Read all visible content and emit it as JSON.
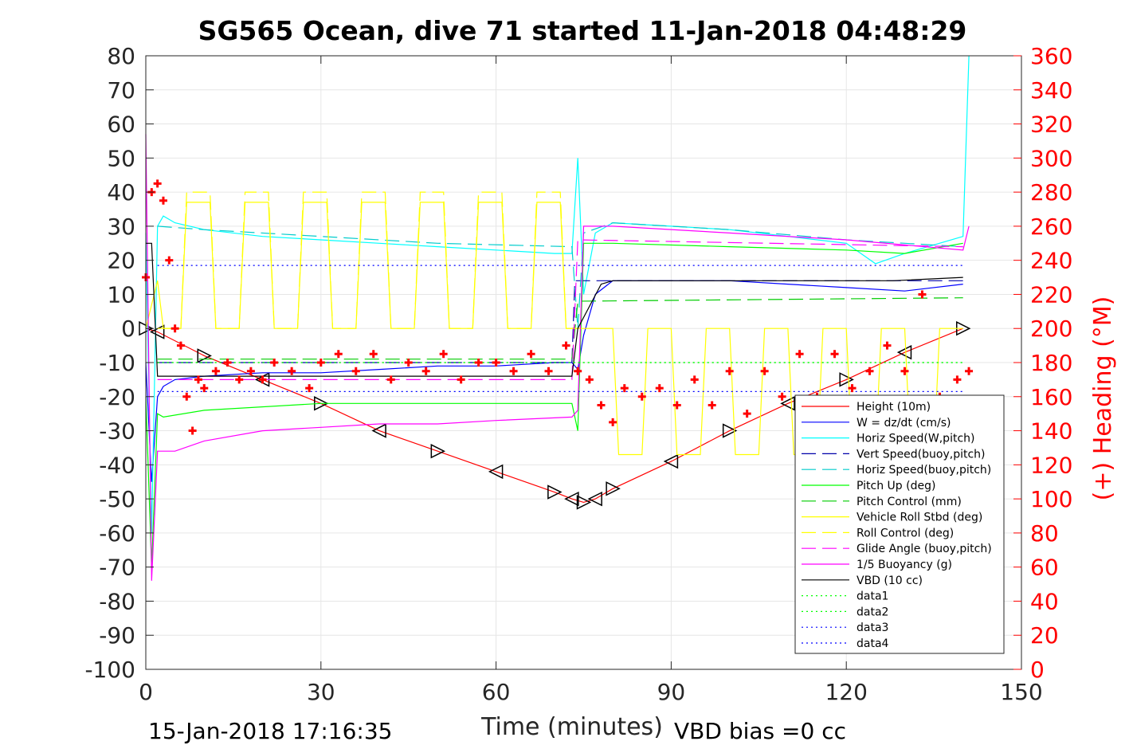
{
  "chart_data": {
    "type": "line",
    "title": "SG565 Ocean, dive 71 started 11-Jan-2018 04:48:29",
    "xlabel": "Time (minutes)",
    "ylabel": "",
    "y2label": "(+) Heading (°M)",
    "xlim": [
      0,
      150
    ],
    "ylim": [
      -100,
      80
    ],
    "y2lim": [
      0,
      360
    ],
    "xticks": [
      "0",
      "30",
      "60",
      "90",
      "120",
      "150"
    ],
    "yticks": [
      "80",
      "70",
      "60",
      "50",
      "40",
      "30",
      "20",
      "10",
      "0",
      "-10",
      "-20",
      "-30",
      "-40",
      "-50",
      "-60",
      "-70",
      "-80",
      "-90",
      "-100"
    ],
    "y2ticks": [
      "360",
      "340",
      "320",
      "300",
      "280",
      "260",
      "240",
      "220",
      "200",
      "180",
      "160",
      "140",
      "120",
      "100",
      "80",
      "60",
      "40",
      "20",
      "0"
    ],
    "grid": true,
    "legend_position": "bottom-right",
    "footer_left": "15-Jan-2018 17:16:35",
    "footer_right": "VBD bias =0 cc",
    "colors": {
      "height": "#ff0000",
      "w": "#0000ff",
      "horiz_w": "#00ffff",
      "vert_buoy": "#0000aa",
      "horiz_buoy": "#00cccc",
      "pitch_up": "#00ff00",
      "pitch_control": "#00cc00",
      "roll": "#ffff00",
      "roll_control": "#ffff00",
      "glide": "#ff00ff",
      "buoyancy": "#ff00ff",
      "vbd": "#000000",
      "heading": "#ff0000"
    },
    "series": [
      {
        "key": "height",
        "name": "Height (10m)",
        "axis": "left",
        "style": "solid",
        "markers": "triangles",
        "x": [
          0,
          2,
          10,
          20,
          30,
          40,
          50,
          60,
          70,
          73,
          75,
          77,
          80,
          90,
          100,
          110,
          120,
          130,
          140
        ],
        "y": [
          0,
          -1,
          -8,
          -15,
          -22,
          -30,
          -36,
          -42,
          -48,
          -50,
          -51,
          -50,
          -47,
          -39,
          -30,
          -22,
          -15,
          -7,
          0
        ]
      },
      {
        "key": "w",
        "name": "W = dz/dt (cm/s)",
        "axis": "left",
        "style": "solid",
        "x": [
          0,
          1,
          2,
          3,
          5,
          10,
          20,
          30,
          40,
          50,
          60,
          70,
          73,
          74,
          75,
          77,
          80,
          90,
          100,
          110,
          120,
          130,
          140
        ],
        "y": [
          -10,
          -45,
          -20,
          -17,
          -15,
          -14,
          -13,
          -13,
          -12,
          -11,
          -11,
          -10,
          -10,
          -12,
          -2,
          10,
          14,
          14,
          14,
          13,
          12,
          11,
          13
        ]
      },
      {
        "key": "horiz_w",
        "name": "Horiz Speed(W,pitch)",
        "axis": "left",
        "style": "solid",
        "x": [
          0,
          1,
          2,
          3,
          5,
          10,
          20,
          30,
          40,
          50,
          60,
          70,
          73,
          74,
          75,
          77,
          80,
          90,
          100,
          110,
          120,
          125,
          130,
          140,
          141
        ],
        "y": [
          28,
          -60,
          30,
          33,
          31,
          29,
          27,
          26,
          25,
          24,
          23,
          22,
          22,
          50,
          10,
          28,
          31,
          30,
          29,
          27,
          25,
          19,
          22,
          27,
          80
        ]
      },
      {
        "key": "vert_buoy",
        "name": "Vert Speed(buoy,pitch)",
        "axis": "left",
        "style": "dashed",
        "x": [
          2,
          73,
          73.5,
          140
        ],
        "y": [
          -10,
          -10,
          14,
          14
        ]
      },
      {
        "key": "horiz_buoy",
        "name": "Horiz Speed(buoy,pitch)",
        "axis": "left",
        "style": "dashed",
        "x": [
          2,
          10,
          30,
          50,
          73,
          74,
          75,
          80,
          100,
          120,
          140
        ],
        "y": [
          30,
          29,
          27,
          25,
          24,
          0,
          28,
          31,
          29,
          26,
          24
        ]
      },
      {
        "key": "pitch_up",
        "name": "Pitch Up (deg)",
        "axis": "left",
        "style": "solid",
        "x": [
          0,
          1,
          2,
          3,
          10,
          30,
          50,
          73,
          74,
          75,
          80,
          100,
          120,
          130,
          140
        ],
        "y": [
          -20,
          -70,
          -25,
          -26,
          -24,
          -22,
          -22,
          -22,
          -30,
          25,
          25,
          24,
          23,
          22,
          25
        ]
      },
      {
        "key": "pitch_control",
        "name": "Pitch Control (mm)",
        "axis": "left",
        "style": "dashed",
        "x": [
          2,
          73,
          74,
          140
        ],
        "y": [
          -9,
          -9,
          8,
          9
        ]
      },
      {
        "key": "roll",
        "name": "Vehicle Roll Stbd (deg)",
        "axis": "left",
        "style": "solid",
        "x": [
          0,
          2,
          3,
          6,
          7,
          11,
          12,
          16,
          17,
          21,
          22,
          26,
          27,
          31,
          32,
          36,
          37,
          41,
          42,
          46,
          47,
          51,
          52,
          56,
          57,
          61,
          62,
          66,
          67,
          71,
          72,
          74,
          75,
          80,
          81,
          85,
          86,
          90,
          91,
          95,
          96,
          100,
          101,
          105,
          106,
          110,
          111,
          115,
          116,
          120,
          121,
          125,
          126,
          130,
          131,
          135,
          136,
          140
        ],
        "y": [
          0,
          14,
          0,
          0,
          37,
          37,
          0,
          0,
          37,
          37,
          0,
          0,
          37,
          37,
          0,
          0,
          37,
          37,
          0,
          0,
          37,
          37,
          0,
          0,
          37,
          37,
          0,
          0,
          37,
          37,
          0,
          0,
          0,
          0,
          -37,
          -37,
          0,
          0,
          -37,
          -37,
          0,
          0,
          -37,
          -37,
          0,
          0,
          -37,
          -37,
          0,
          0,
          -37,
          -37,
          0,
          0,
          -37,
          -37,
          0,
          0
        ]
      },
      {
        "key": "roll_control",
        "name": "Roll Control (deg)",
        "axis": "left",
        "style": "dashed",
        "x": [
          2,
          6,
          7,
          11,
          12,
          16,
          17,
          21,
          22,
          26,
          27,
          31,
          32,
          36,
          37,
          41,
          42,
          46,
          47,
          51,
          52,
          56,
          57,
          61,
          62,
          66,
          67,
          71,
          72,
          74
        ],
        "y": [
          0,
          0,
          40,
          40,
          0,
          0,
          40,
          40,
          0,
          0,
          40,
          40,
          0,
          0,
          40,
          40,
          0,
          0,
          40,
          40,
          0,
          0,
          40,
          40,
          0,
          0,
          40,
          40,
          0,
          0
        ]
      },
      {
        "key": "glide",
        "name": "Glide Angle (buoy,pitch)",
        "axis": "left",
        "style": "dashed",
        "x": [
          2,
          73,
          74,
          140
        ],
        "y": [
          -15,
          -15,
          26,
          24
        ]
      },
      {
        "key": "buoyancy",
        "name": "1/5 Buoyancy (g)",
        "axis": "left",
        "style": "solid",
        "x": [
          0,
          1,
          2,
          5,
          10,
          20,
          30,
          40,
          50,
          60,
          73,
          74,
          75,
          80,
          100,
          120,
          140,
          141
        ],
        "y": [
          57,
          -74,
          -36,
          -36,
          -33,
          -30,
          -29,
          -28,
          -28,
          -27,
          -26,
          -24,
          30,
          30,
          28,
          26,
          23,
          30
        ]
      },
      {
        "key": "vbd",
        "name": "VBD (10 cc)",
        "axis": "left",
        "style": "solid",
        "x": [
          0,
          1,
          2,
          73,
          74,
          78,
          80,
          128,
          140
        ],
        "y": [
          25,
          25,
          -14,
          -14,
          0,
          13,
          14,
          14,
          15
        ]
      },
      {
        "key": "data1",
        "name": "data1",
        "axis": "left",
        "style": "dotted",
        "x": [
          2,
          140
        ],
        "y": [
          -10,
          -10
        ]
      },
      {
        "key": "data2",
        "name": "data2",
        "axis": "left",
        "style": "dotted",
        "x": [
          2,
          140
        ],
        "y": [
          -10,
          -10
        ]
      },
      {
        "key": "data3",
        "name": "data3",
        "axis": "left",
        "style": "dotted",
        "x": [
          2,
          140
        ],
        "y": [
          18.5,
          18.5
        ]
      },
      {
        "key": "data4",
        "name": "data4",
        "axis": "left",
        "style": "dotted",
        "x": [
          2,
          140
        ],
        "y": [
          -18.5,
          -18.5
        ]
      },
      {
        "key": "heading",
        "name": "",
        "axis": "right",
        "style": "markers",
        "x": [
          0,
          1,
          2,
          3,
          4,
          5,
          6,
          7,
          8,
          9,
          10,
          12,
          14,
          16,
          18,
          20,
          22,
          25,
          28,
          30,
          33,
          36,
          39,
          42,
          45,
          48,
          51,
          54,
          57,
          60,
          63,
          66,
          69,
          72,
          74,
          76,
          78,
          80,
          82,
          85,
          88,
          91,
          94,
          97,
          100,
          103,
          106,
          109,
          112,
          115,
          118,
          121,
          124,
          127,
          130,
          133,
          136,
          139,
          141
        ],
        "y": [
          230,
          280,
          285,
          275,
          240,
          200,
          190,
          160,
          140,
          170,
          165,
          175,
          180,
          170,
          175,
          170,
          180,
          175,
          165,
          180,
          185,
          175,
          185,
          170,
          180,
          175,
          185,
          170,
          180,
          180,
          175,
          185,
          175,
          190,
          175,
          170,
          155,
          145,
          165,
          160,
          165,
          155,
          170,
          155,
          175,
          150,
          175,
          160,
          185,
          160,
          185,
          165,
          175,
          190,
          175,
          220,
          160,
          170,
          175
        ]
      }
    ]
  }
}
